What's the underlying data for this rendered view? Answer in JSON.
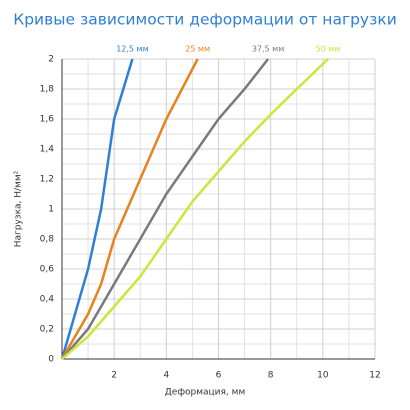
{
  "chart_data": {
    "type": "line",
    "title": "Кривые зависимости деформации от нагрузки",
    "x_label": "Деформация, мм",
    "y_label": "Нагрузка, Н/мм²",
    "xlim": [
      0,
      12
    ],
    "ylim": [
      0,
      2
    ],
    "xticks": [
      2,
      4,
      6,
      8,
      10,
      12
    ],
    "yticks": [
      0,
      {
        "value": 0.2,
        "label": "0,2"
      },
      {
        "value": 0.4,
        "label": "0,4"
      },
      {
        "value": 0.6,
        "label": "0,6"
      },
      {
        "value": 0.8,
        "label": "0,8"
      },
      1,
      {
        "value": 1.2,
        "label": "1,2"
      },
      {
        "value": 1.4,
        "label": "1,4"
      },
      {
        "value": 1.6,
        "label": "1,6"
      },
      {
        "value": 1.8,
        "label": "1,8"
      },
      2
    ],
    "grid": true,
    "minor_grid": true,
    "series": [
      {
        "name": "12,5 мм",
        "color": "#2f7fd6",
        "x": [
          0,
          0.5,
          1,
          1.5,
          2,
          2.7
        ],
        "values": [
          0,
          0.3,
          0.6,
          1.0,
          1.6,
          2
        ]
      },
      {
        "name": "25 мм",
        "color": "#e8821e",
        "x": [
          0,
          1,
          1.5,
          2,
          3,
          4,
          5.2
        ],
        "values": [
          0,
          0.3,
          0.5,
          0.8,
          1.2,
          1.6,
          2
        ]
      },
      {
        "name": "37,5 мм",
        "color": "#7a7a7a",
        "x": [
          0,
          1,
          2,
          3,
          4,
          5,
          6,
          7,
          7.9
        ],
        "values": [
          0,
          0.2,
          0.5,
          0.8,
          1.1,
          1.35,
          1.6,
          1.8,
          2
        ]
      },
      {
        "name": "50 мм",
        "color": "#cde63a",
        "x": [
          0,
          1,
          2,
          3,
          4,
          5,
          6,
          7,
          8,
          9,
          10.2
        ],
        "values": [
          0,
          0.15,
          0.35,
          0.55,
          0.8,
          1.05,
          1.25,
          1.45,
          1.63,
          1.8,
          2
        ]
      }
    ]
  }
}
